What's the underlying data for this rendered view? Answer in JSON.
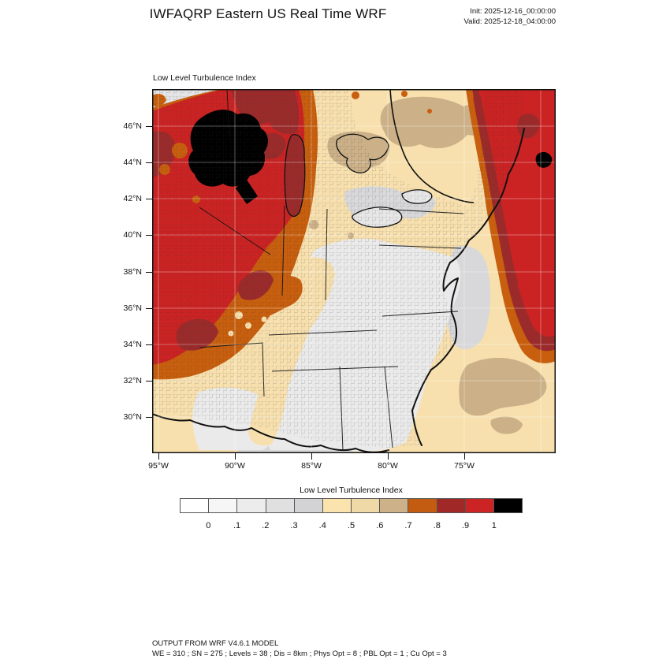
{
  "header": {
    "title": "IWFAQRP Eastern US Real Time WRF",
    "init_label": "Init: 2025-12-16_00:00:00",
    "valid_label": "Valid: 2025-12-18_04:00:00"
  },
  "map": {
    "subtitle": "Low Level Turbulence Index",
    "lat_tick_labels": [
      "46°N",
      "44°N",
      "42°N",
      "40°N",
      "38°N",
      "36°N",
      "34°N",
      "32°N",
      "30°N"
    ],
    "lon_tick_labels": [
      "95°W",
      "90°W",
      "85°W",
      "80°W",
      "75°W"
    ]
  },
  "colorbar": {
    "title": "Low Level Turbulence Index",
    "tick_labels": [
      "0",
      ".1",
      ".2",
      ".3",
      ".4",
      ".5",
      ".6",
      ".7",
      ".8",
      ".9",
      "1"
    ],
    "colors": [
      "#FFFFFF",
      "#F6F6F6",
      "#ECECEC",
      "#E0E0E1",
      "#D3D3D5",
      "#FBE3AD",
      "#EFD9A6",
      "#CDB189",
      "#C35C10",
      "#A02928",
      "#CC2424",
      "#000000"
    ],
    "value_range": [
      0,
      1
    ]
  },
  "footer": {
    "line1": "OUTPUT FROM WRF V4.6.1 MODEL",
    "line2": "WE = 310 ; SN = 275 ; Levels = 38 ; Dis = 8km ; Phys Opt = 8 ; PBL Opt = 1 ; Cu Opt = 3"
  },
  "palette_semantics": {
    "low_turbulence": "#ECECEC",
    "moderate_turbulence": "#EFD9A6",
    "high_turbulence": "#CC2424",
    "extreme_turbulence": "#000000"
  }
}
